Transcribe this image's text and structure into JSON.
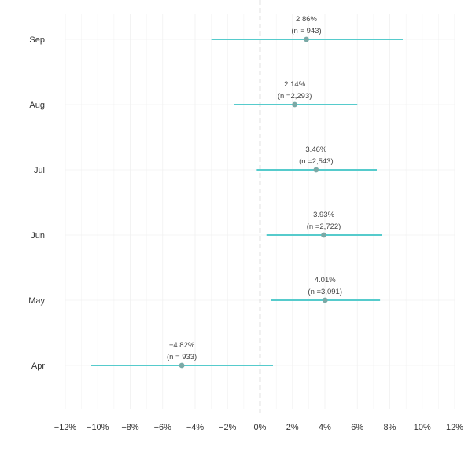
{
  "chart_data": {
    "type": "forest",
    "orientation": "horizontal",
    "categories": [
      "Sep",
      "Aug",
      "Jul",
      "Jun",
      "May",
      "Apr"
    ],
    "points": [
      {
        "category": "Sep",
        "estimate": 2.86,
        "lower": -3.0,
        "upper": 8.8,
        "label": "2.86%",
        "n_label": "(n =  943)"
      },
      {
        "category": "Aug",
        "estimate": 2.14,
        "lower": -1.6,
        "upper": 6.0,
        "label": "2.14%",
        "n_label": "(n =2,293)"
      },
      {
        "category": "Jul",
        "estimate": 3.46,
        "lower": -0.2,
        "upper": 7.2,
        "label": "3.46%",
        "n_label": "(n =2,543)"
      },
      {
        "category": "Jun",
        "estimate": 3.93,
        "lower": 0.4,
        "upper": 7.5,
        "label": "3.93%",
        "n_label": "(n =2,722)"
      },
      {
        "category": "May",
        "estimate": 4.01,
        "lower": 0.7,
        "upper": 7.4,
        "label": "4.01%",
        "n_label": "(n =3,091)"
      },
      {
        "category": "Apr",
        "estimate": -4.82,
        "lower": -10.4,
        "upper": 0.8,
        "label": "−4.82%",
        "n_label": "(n =  933)"
      }
    ],
    "x_ticks": [
      -12,
      -10,
      -8,
      -6,
      -4,
      -2,
      0,
      2,
      4,
      6,
      8,
      10,
      12
    ],
    "x_tick_labels": [
      "−12%",
      "−10%",
      "−8%",
      "−6%",
      "−4%",
      "−2%",
      "0%",
      "2%",
      "4%",
      "6%",
      "8%",
      "10%",
      "12%"
    ],
    "xlim": [
      -12,
      12
    ],
    "reference_line": 0,
    "reference_line_style": "dashed",
    "grid": true,
    "title": "",
    "xlabel": "",
    "ylabel": "",
    "colors": {
      "interval": "#56cbcc",
      "point": "#7aa9a6",
      "reference": "#b8b8b8",
      "grid": "#f0f0f0"
    }
  }
}
